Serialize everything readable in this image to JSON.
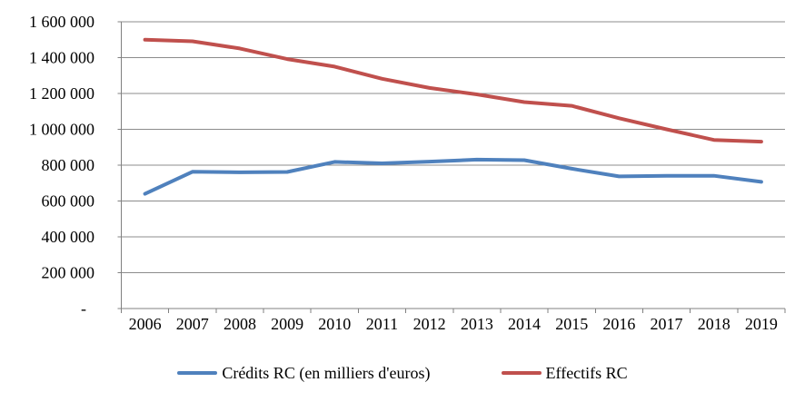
{
  "chart_data": {
    "type": "line",
    "title": "",
    "xlabel": "",
    "ylabel": "",
    "categories": [
      "2006",
      "2007",
      "2008",
      "2009",
      "2010",
      "2011",
      "2012",
      "2013",
      "2014",
      "2015",
      "2016",
      "2017",
      "2018",
      "2019"
    ],
    "series": [
      {
        "name": "Crédits RC (en milliers d'euros)",
        "color": "#4F81BD",
        "values": [
          640000,
          763000,
          760000,
          762000,
          818000,
          810000,
          820000,
          831000,
          828000,
          780000,
          737000,
          741000,
          741000,
          707000
        ]
      },
      {
        "name": "Effectifs RC",
        "color": "#C0504D",
        "values": [
          1500000,
          1491000,
          1451000,
          1392000,
          1350000,
          1282000,
          1231000,
          1195000,
          1152000,
          1131000,
          1062000,
          1000000,
          941000,
          931000
        ]
      }
    ],
    "ylim": [
      0,
      1600000
    ],
    "y_tick_step": 200000,
    "y_tick_labels": [
      "1 600 000",
      "1 400 000",
      "1 200 000",
      "1 000 000",
      "800 000",
      "600 000",
      "400 000",
      "200 000",
      "-  "
    ],
    "grid": "horizontal",
    "legend_position": "bottom",
    "gridline_color": "#8C8C8C",
    "axis_color": "#808080",
    "text_color": "#000000",
    "line_width": 4
  },
  "legend": {
    "items": [
      {
        "label": "Crédits RC (en milliers d'euros)"
      },
      {
        "label": "Effectifs RC"
      }
    ]
  }
}
